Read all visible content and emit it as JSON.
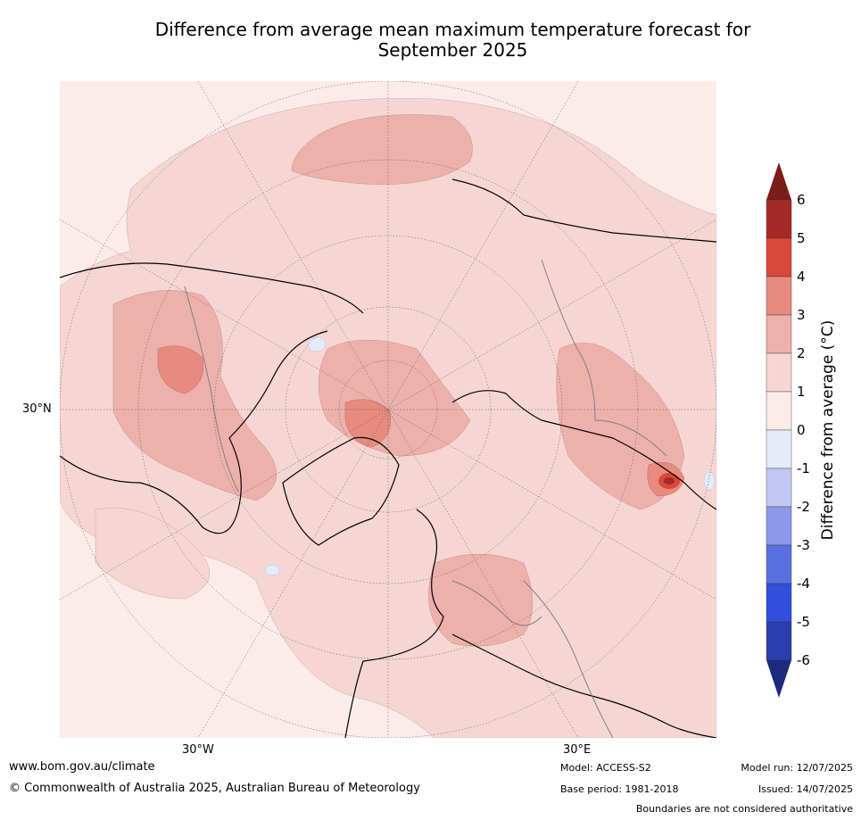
{
  "title_line1": "Difference from average mean maximum temperature forecast for",
  "title_line2": "September 2025",
  "map": {
    "lat_label": "30°N",
    "lon_labels": [
      "30°W",
      "30°E"
    ]
  },
  "colorbar": {
    "title": "Difference from average (°C)",
    "ticks": [
      "6",
      "5",
      "4",
      "3",
      "2",
      "1",
      "0",
      "-1",
      "-2",
      "-3",
      "-4",
      "-5",
      "-6"
    ],
    "colors_top_to_bottom": [
      "#a52a25",
      "#d9483b",
      "#e78a80",
      "#edb1ab",
      "#f6d6d3",
      "#fbece9",
      "#e6ebfa",
      "#c2c8f1",
      "#8c98ea",
      "#5b70e0",
      "#2f4fdc",
      "#2a3eb0"
    ],
    "max_arrow_color": "#7a1c1a",
    "min_arrow_color": "#1e2a7e"
  },
  "footer": {
    "website": "www.bom.gov.au/climate",
    "copyright": "© Commonwealth of Australia 2025, Australian Bureau of Meteorology",
    "model": "Model: ACCESS-S2",
    "base_period": "Base period: 1981-2018",
    "model_run": "Model run: 12/07/2025",
    "issued": "Issued: 14/07/2025",
    "disclaimer": "Boundaries are not considered authoritative"
  }
}
